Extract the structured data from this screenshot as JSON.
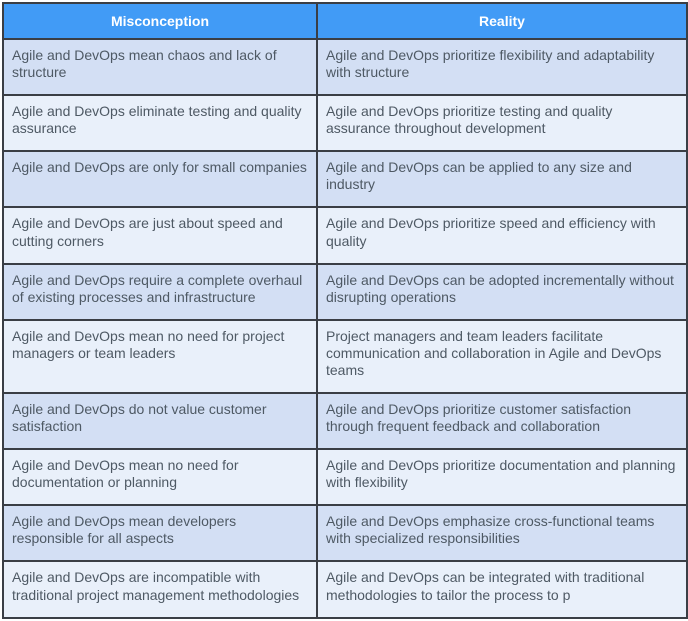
{
  "table": {
    "headers": [
      "Misconception",
      "Reality"
    ],
    "rows": [
      {
        "misconception": "Agile and DevOps mean chaos and lack of structure",
        "reality": "Agile and DevOps prioritize flexibility and adaptability with structure"
      },
      {
        "misconception": "Agile and DevOps eliminate testing and quality assurance",
        "reality": "Agile and DevOps prioritize testing and quality assurance throughout development"
      },
      {
        "misconception": "Agile and DevOps are only for small companies",
        "reality": "Agile and DevOps can be applied to any size and industry"
      },
      {
        "misconception": "Agile and DevOps are just about speed and cutting corners",
        "reality": "Agile and DevOps prioritize speed and efficiency with quality"
      },
      {
        "misconception": "Agile and DevOps require a complete overhaul of existing processes and infrastructure",
        "reality": "Agile and DevOps can be adopted incrementally without disrupting operations"
      },
      {
        "misconception": "Agile and DevOps mean no need for project managers or team leaders",
        "reality": "Project managers and team leaders facilitate communication and collaboration in Agile and DevOps teams"
      },
      {
        "misconception": "Agile and DevOps do not value customer satisfaction",
        "reality": "Agile and DevOps prioritize customer satisfaction through frequent feedback and collaboration"
      },
      {
        "misconception": "Agile and DevOps mean no need for documentation or planning",
        "reality": "Agile and DevOps prioritize documentation and planning with flexibility"
      },
      {
        "misconception": "Agile and DevOps mean developers responsible for all aspects",
        "reality": "Agile and DevOps emphasize cross-functional teams with specialized responsibilities"
      },
      {
        "misconception": "Agile and DevOps are incompatible with traditional project management methodologies",
        "reality": "Agile and DevOps can be integrated with traditional methodologies to tailor the process to p"
      }
    ]
  },
  "colors": {
    "header_bg": "#419bf6",
    "header_fg": "#ffffff",
    "row_odd": "#d3dff4",
    "row_even": "#e9f0fa",
    "border": "#3a3e45",
    "cell_fg": "#4e5964"
  }
}
